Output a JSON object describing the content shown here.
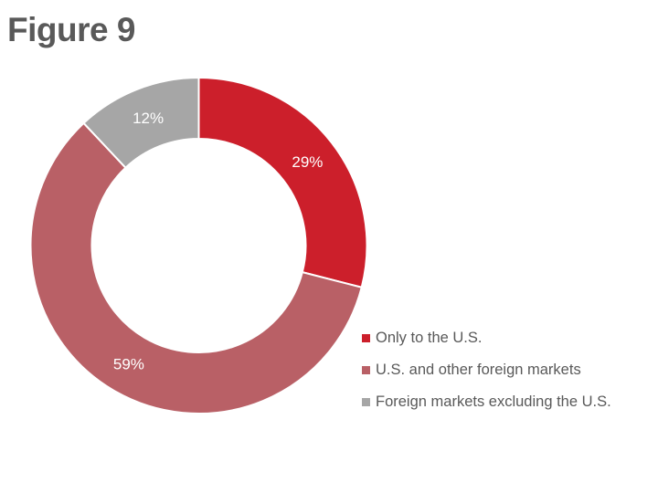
{
  "title": "Figure 9",
  "chart_data": {
    "type": "pie",
    "subtype": "donut",
    "title": "Figure 9",
    "categories": [
      "Only to the U.S.",
      "U.S. and other foreign markets",
      "Foreign markets excluding the U.S."
    ],
    "values": [
      29,
      59,
      12
    ],
    "labels": [
      "29%",
      "59%",
      "12%"
    ],
    "colors": [
      "#cc1f2b",
      "#b96066",
      "#a6a6a6"
    ],
    "legend_position": "right-bottom",
    "start_angle_deg": 0,
    "direction": "clockwise"
  },
  "legend": {
    "items": [
      {
        "label": "Only to the U.S.",
        "color": "#cc1f2b"
      },
      {
        "label": "U.S. and other foreign markets",
        "color": "#b96066"
      },
      {
        "label": "Foreign markets excluding the U.S.",
        "color": "#a6a6a6"
      }
    ]
  }
}
